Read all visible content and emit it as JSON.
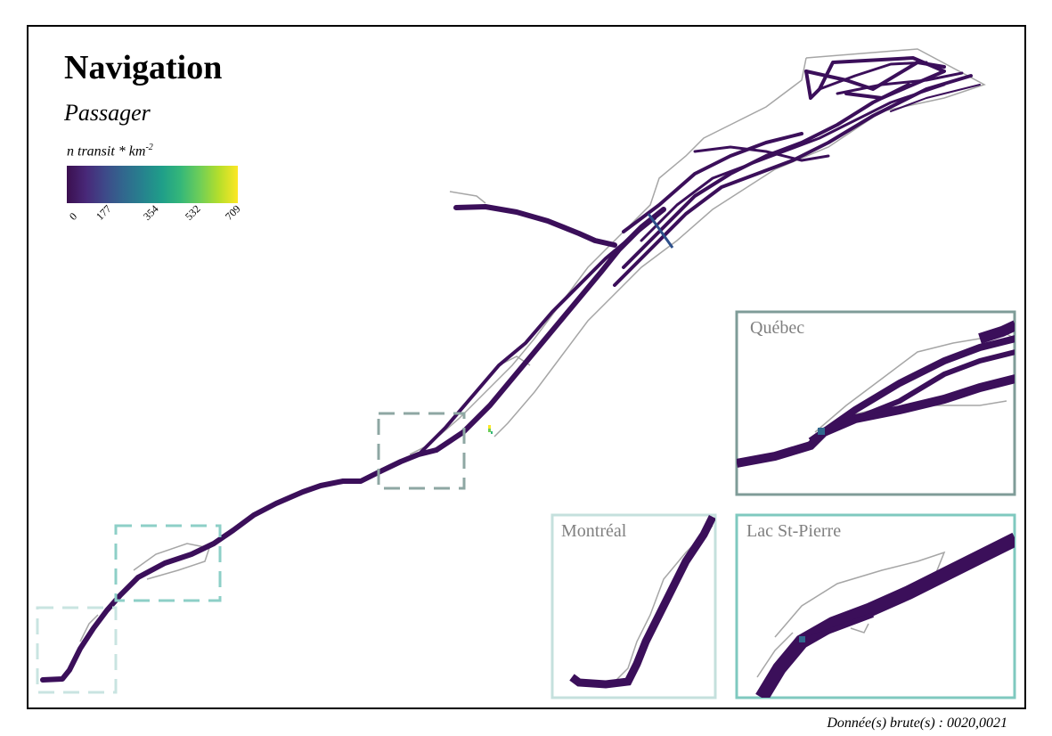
{
  "title": "Navigation",
  "subtitle": "Passager",
  "legend": {
    "title": "n transit * km",
    "title_exponent": "-2",
    "ticks": [
      "0",
      "177",
      "354",
      "532",
      "709"
    ],
    "colors": [
      "#3b0f4f",
      "#482878",
      "#3e4989",
      "#31688e",
      "#26828e",
      "#1f9e89",
      "#35b779",
      "#6ece58",
      "#b5de2b",
      "#fde725"
    ]
  },
  "insets": [
    {
      "label": "Québec",
      "color": "#7f9c98"
    },
    {
      "label": "Montréal",
      "color": "#c5e0dd"
    },
    {
      "label": "Lac St-Pierre",
      "color": "#7fc9bf"
    }
  ],
  "colors": {
    "route": "#3b0f5a",
    "shoreline": "#a6a6a6",
    "box_quebec": "#8ea7a3",
    "box_lacstpierre": "#8dcfc7",
    "box_montreal": "#c9e4e1"
  },
  "source": "Donnée(s) brute(s) : 0020,0021"
}
